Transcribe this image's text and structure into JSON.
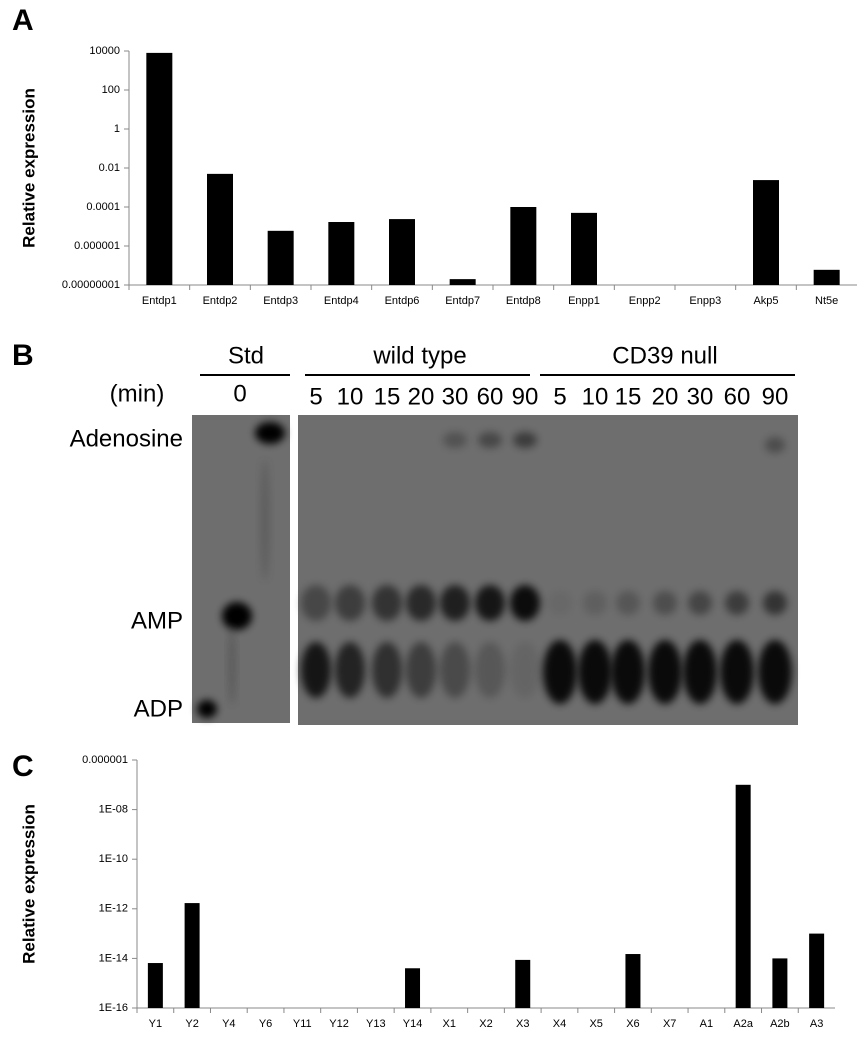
{
  "panel_labels": [
    "A",
    "B",
    "C"
  ],
  "chart_data": [
    {
      "type": "bar",
      "y_label": "Relative expression",
      "log_scale": true,
      "color": "#000000",
      "categories": [
        "Entdp1",
        "Entdp2",
        "Entdp3",
        "Entdp4",
        "Entdp6",
        "Entdp7",
        "Entdp8",
        "Enpp1",
        "Enpp2",
        "Enpp3",
        "Akp5",
        "Nt5e"
      ],
      "values": [
        8000,
        0.005,
        6e-06,
        1.7e-05,
        2.4e-05,
        2e-08,
        0.0001,
        5e-05,
        null,
        null,
        0.0024,
        6e-08
      ],
      "ylim": [
        1e-08,
        10000
      ],
      "yticks": [
        10000,
        100,
        1,
        0.01,
        0.0001,
        1e-06,
        {
          "value": 1e-08,
          "label": "0.00000001"
        }
      ]
    },
    {
      "type": "bar",
      "y_label": "Relative expression",
      "log_scale": true,
      "color": "#000000",
      "categories": [
        "Y1",
        "Y2",
        "Y4",
        "Y6",
        "Y11",
        "Y12",
        "Y13",
        "Y14",
        "X1",
        "X2",
        "X3",
        "X4",
        "X5",
        "X6",
        "X7",
        "A1",
        "A2a",
        "A2b",
        "A3"
      ],
      "values": [
        6.5e-15,
        1.7e-12,
        null,
        null,
        null,
        null,
        null,
        4e-15,
        null,
        null,
        8.7e-15,
        null,
        null,
        1.5e-14,
        null,
        null,
        1e-07,
        1e-14,
        1e-13
      ],
      "ylim": [
        1e-16,
        1e-06
      ],
      "yticks": [
        {
          "value": 1e-06,
          "label": "0.000001"
        },
        {
          "value": 1e-08,
          "label": "1E-08"
        },
        {
          "value": 1e-10,
          "label": "1E-10"
        },
        {
          "value": 1e-12,
          "label": "1E-12"
        },
        {
          "value": 1e-14,
          "label": "1E-14"
        },
        {
          "value": 1e-16,
          "label": "1E-16"
        }
      ]
    }
  ],
  "gel": {
    "time_unit": "(min)",
    "standard": {
      "label": "Std",
      "times": [
        "0"
      ]
    },
    "wild_type": {
      "label": "wild type",
      "times": [
        "5",
        "10",
        "15",
        "20",
        "30",
        "60",
        "90"
      ]
    },
    "cd39_null": {
      "label": "CD39 null",
      "times": [
        "5",
        "10",
        "15",
        "20",
        "30",
        "60",
        "90"
      ]
    },
    "bands": [
      "Adenosine",
      "AMP",
      "ADP"
    ]
  }
}
